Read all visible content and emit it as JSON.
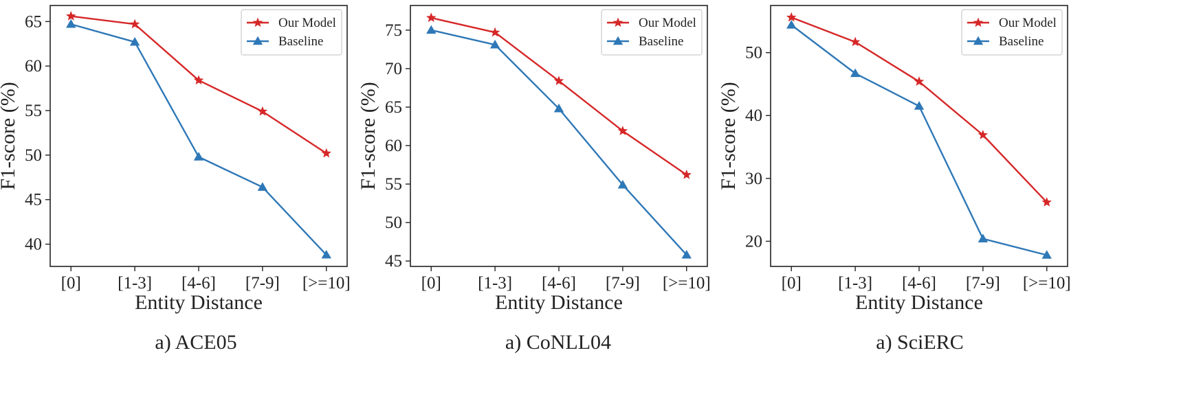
{
  "chart_data": [
    {
      "type": "line",
      "caption": "a) ACE05",
      "categories": [
        "[0]",
        "[1-3]",
        "[4-6]",
        "[7-9]",
        "[>=10]"
      ],
      "xlabel": "Entity Distance",
      "ylabel": "F1-score (%)",
      "ylim": [
        37.5,
        66.8
      ],
      "yticks": [
        40,
        45,
        50,
        55,
        60,
        65
      ],
      "legend": "top-right",
      "series": [
        {
          "name": "Our Model",
          "color": "#d62728",
          "marker": "star",
          "values": [
            65.6,
            64.7,
            58.4,
            54.9,
            50.2
          ]
        },
        {
          "name": "Baseline",
          "color": "#2e78b7",
          "marker": "triangle",
          "values": [
            64.7,
            62.7,
            49.8,
            46.4,
            38.8
          ]
        }
      ]
    },
    {
      "type": "line",
      "caption": "a) CoNLL04",
      "categories": [
        "[0]",
        "[1-3]",
        "[4-6]",
        "[7-9]",
        "[>=10]"
      ],
      "xlabel": "Entity Distance",
      "ylabel": "F1-score (%)",
      "ylim": [
        44.3,
        78.2
      ],
      "yticks": [
        45,
        50,
        55,
        60,
        65,
        70,
        75
      ],
      "legend": "top-right",
      "series": [
        {
          "name": "Our Model",
          "color": "#d62728",
          "marker": "star",
          "values": [
            76.6,
            74.7,
            68.4,
            61.9,
            56.2
          ]
        },
        {
          "name": "Baseline",
          "color": "#2e78b7",
          "marker": "triangle",
          "values": [
            75.0,
            73.1,
            64.8,
            54.9,
            45.8
          ]
        }
      ]
    },
    {
      "type": "line",
      "caption": "a) SciERC",
      "categories": [
        "[0]",
        "[1-3]",
        "[4-6]",
        "[7-9]",
        "[>=10]"
      ],
      "xlabel": "Entity Distance",
      "ylabel": "F1-score (%)",
      "ylim": [
        16.0,
        57.5
      ],
      "yticks": [
        20,
        30,
        40,
        50
      ],
      "legend": "top-right",
      "series": [
        {
          "name": "Our Model",
          "color": "#d62728",
          "marker": "star",
          "values": [
            55.6,
            51.7,
            45.4,
            36.9,
            26.2
          ]
        },
        {
          "name": "Baseline",
          "color": "#2e78b7",
          "marker": "triangle",
          "values": [
            54.4,
            46.7,
            41.5,
            20.4,
            17.8
          ]
        }
      ]
    }
  ]
}
